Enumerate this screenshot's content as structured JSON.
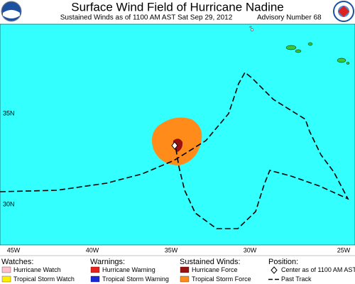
{
  "header": {
    "title": "Surface Wind Field of Hurricane Nadine",
    "subtitle": "Sustained Winds as of 1100 AM AST Sat Sep 29, 2012",
    "advisory": "Advisory Number 68"
  },
  "map": {
    "lat_labels": [
      "35N",
      "30N"
    ],
    "lon_labels": [
      "45W",
      "40W",
      "35W",
      "30W",
      "25W"
    ]
  },
  "legend": {
    "watches": {
      "heading": "Watches:",
      "items": [
        "Hurricane Watch",
        "Tropical Storm Watch"
      ]
    },
    "warnings": {
      "heading": "Warnings:",
      "items": [
        "Hurricane Warning",
        "Tropical Storm Warning"
      ]
    },
    "winds": {
      "heading": "Sustained Winds:",
      "items": [
        "Hurricane Force",
        "Tropical Storm Force"
      ]
    },
    "position": {
      "heading": "Position:",
      "items": [
        "Center as of 1100 AM AST",
        "Past Track"
      ]
    }
  }
}
